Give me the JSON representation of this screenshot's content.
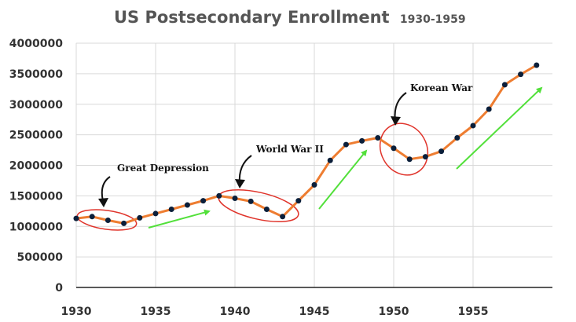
{
  "chart_data": {
    "type": "line",
    "title": "US Postsecondary Enrollment",
    "subtitle": "1930-1959",
    "xlabel": "",
    "ylabel": "",
    "xlim": [
      1930,
      1960
    ],
    "ylim": [
      0,
      4000000
    ],
    "x_ticks": [
      1930,
      1935,
      1940,
      1945,
      1950,
      1955
    ],
    "y_ticks": [
      0,
      500000,
      1000000,
      1500000,
      2000000,
      2500000,
      3000000,
      3500000,
      4000000
    ],
    "grid": true,
    "x": [
      1930,
      1931,
      1932,
      1933,
      1934,
      1935,
      1936,
      1937,
      1938,
      1939,
      1940,
      1941,
      1942,
      1943,
      1944,
      1945,
      1946,
      1947,
      1948,
      1949,
      1950,
      1951,
      1952,
      1953,
      1954,
      1955,
      1956,
      1957,
      1958,
      1959
    ],
    "values": [
      1130000,
      1160000,
      1100000,
      1050000,
      1140000,
      1210000,
      1280000,
      1350000,
      1420000,
      1500000,
      1460000,
      1410000,
      1280000,
      1160000,
      1420000,
      1680000,
      2080000,
      2340000,
      2400000,
      2450000,
      2280000,
      2100000,
      2140000,
      2230000,
      2450000,
      2650000,
      2920000,
      3320000,
      3490000,
      3640000
    ],
    "colors": {
      "line": "#ee7d31",
      "marker": "#0b1f3a",
      "ellipse": "#e0342b",
      "trend_arrow": "#52e03a"
    },
    "annotations": [
      {
        "label": "Great Depression",
        "x": 1932,
        "y": 1100000
      },
      {
        "label": "World War II",
        "x": 1941,
        "y": 1450000
      },
      {
        "label": "Korean War",
        "x": 1950,
        "y": 2300000
      }
    ]
  }
}
